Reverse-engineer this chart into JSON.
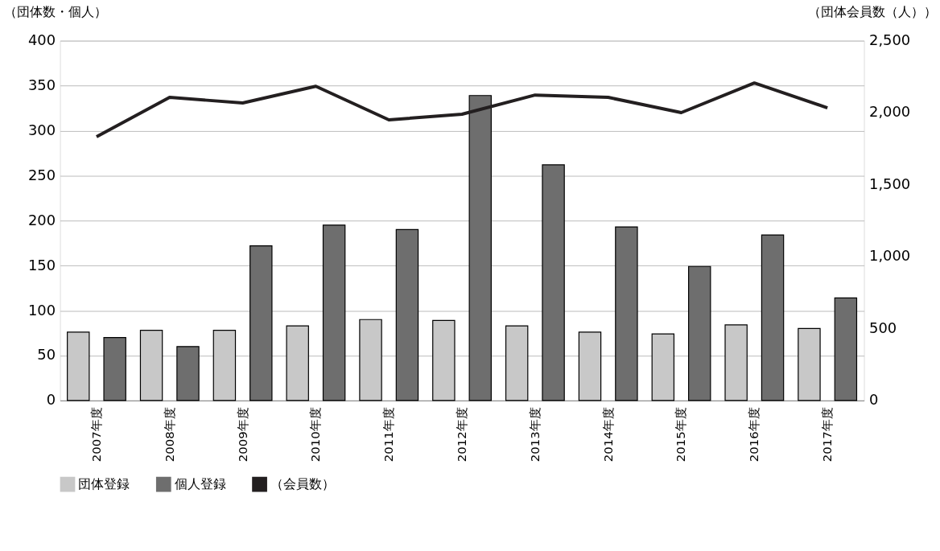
{
  "chart_data": {
    "type": "bar",
    "ylabel": "（団体数・個人）",
    "y2label": "（団体会員数（人））",
    "categories": [
      "2007年度",
      "2008年度",
      "2009年度",
      "2010年度",
      "2011年度",
      "2012年度",
      "2013年度",
      "2014年度",
      "2015年度",
      "2016年度",
      "2017年度"
    ],
    "series": [
      {
        "name": "団体登録",
        "color": "#c8c8c8",
        "values": [
          76,
          78,
          78,
          83,
          90,
          89,
          83,
          76,
          74,
          84,
          80
        ]
      },
      {
        "name": "個人登録",
        "color": "#6e6e6e",
        "values": [
          70,
          60,
          172,
          195,
          190,
          339,
          262,
          193,
          149,
          184,
          114
        ]
      },
      {
        "name": "（会員数）",
        "type": "line",
        "axis": "y2",
        "color": "#231f20",
        "values": [
          1833,
          2106,
          2067,
          2183,
          1950,
          1989,
          2122,
          2106,
          2000,
          2206,
          2033
        ]
      }
    ],
    "ylim": [
      0,
      400
    ],
    "yticks": [
      0,
      50,
      100,
      150,
      200,
      250,
      300,
      350,
      400
    ],
    "y2lim": [
      0,
      2500
    ],
    "y2ticks": [
      0,
      500,
      {
        "value": 1000,
        "label": "1,000"
      },
      {
        "value": 1500,
        "label": "1,500"
      },
      {
        "value": 2000,
        "label": "2,000"
      },
      {
        "value": 2500,
        "label": "2,500"
      }
    ],
    "grid": "y",
    "legend": "bottom"
  }
}
